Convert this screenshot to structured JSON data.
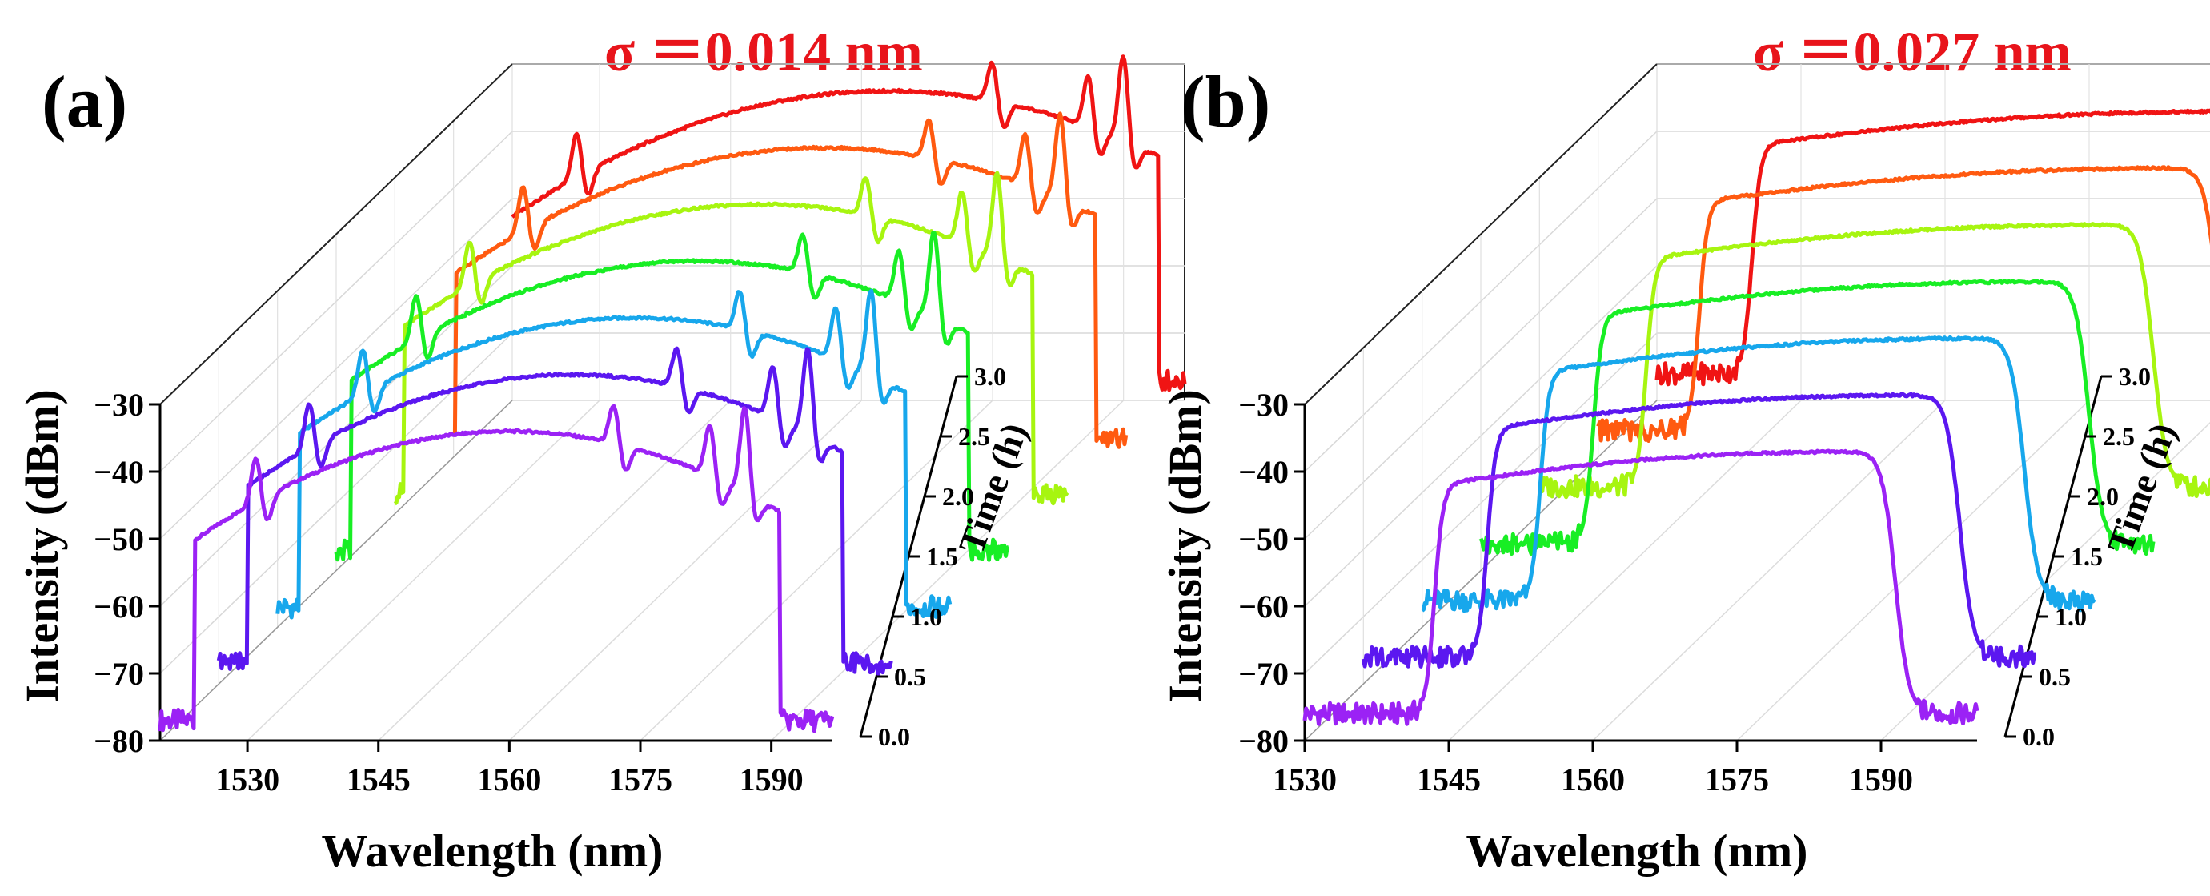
{
  "figure": {
    "panels": [
      "(a)",
      "(b)"
    ],
    "sigma_labels": [
      "σ ＝0.014 nm",
      "σ ＝0.027 nm"
    ]
  },
  "chart_data": [
    {
      "type": "line",
      "panel": "(a)",
      "title": "σ ＝0.014 nm",
      "xlabel": "Wavelength (nm)",
      "ylabel": "Intensity (dBm)",
      "zlabel": "Time (h)",
      "xlim": [
        1520,
        1597
      ],
      "ylim": [
        -80,
        -30
      ],
      "zlim": [
        0,
        3
      ],
      "xticks": [
        1530,
        1545,
        1560,
        1575,
        1590
      ],
      "yticks": [
        -30,
        -40,
        -50,
        -60,
        -70,
        -80
      ],
      "zticks": [
        0.0,
        0.5,
        1.0,
        1.5,
        2.0,
        2.5,
        3.0
      ],
      "xtick_labels": [
        "1530",
        "1545",
        "1560",
        "1575",
        "1590"
      ],
      "ytick_labels": [
        "−30",
        "−40",
        "−50",
        "−60",
        "−70",
        "−80"
      ],
      "ztick_labels": [
        "0.0",
        "0.5",
        "1.0",
        "1.5",
        "2.0",
        "2.5",
        "3.0"
      ],
      "spectrum_shape": "parabolic",
      "spectrum_params": {
        "x0": 1520,
        "x1": 1597,
        "floor": -77,
        "a": 1524,
        "b": 1591,
        "peak": -36,
        "center": 1560,
        "spikes": [
          [
            1531,
            7
          ],
          [
            1572,
            6
          ],
          [
            1583,
            8
          ],
          [
            1587,
            13
          ]
        ]
      },
      "series": [
        {
          "name": "0.0 h",
          "time": 0.0,
          "color": "#9b22f5"
        },
        {
          "name": "0.5 h",
          "time": 0.5,
          "color": "#5b17f0"
        },
        {
          "name": "1.0 h",
          "time": 1.0,
          "color": "#17a7ec"
        },
        {
          "name": "1.5 h",
          "time": 1.5,
          "color": "#18ee24"
        },
        {
          "name": "2.0 h",
          "time": 2.0,
          "color": "#a7f510"
        },
        {
          "name": "2.5 h",
          "time": 2.5,
          "color": "#ff5a10"
        },
        {
          "name": "3.0 h",
          "time": 3.0,
          "color": "#f01414"
        }
      ]
    },
    {
      "type": "line",
      "panel": "(b)",
      "title": "σ ＝0.027 nm",
      "xlabel": "Wavelength (nm)",
      "ylabel": "Intensity (dBm)",
      "zlabel": "Time (h)",
      "xlim": [
        1530,
        1600
      ],
      "ylim": [
        -80,
        -30
      ],
      "zlim": [
        0,
        3
      ],
      "xticks": [
        1530,
        1545,
        1560,
        1575,
        1590
      ],
      "yticks": [
        -30,
        -40,
        -50,
        -60,
        -70,
        -80
      ],
      "zticks": [
        0.0,
        0.5,
        1.0,
        1.5,
        2.0,
        2.5,
        3.0
      ],
      "xtick_labels": [
        "1530",
        "1545",
        "1560",
        "1575",
        "1590"
      ],
      "ytick_labels": [
        "−30",
        "−40",
        "−50",
        "−60",
        "−70",
        "−80"
      ],
      "ztick_labels": [
        "0.0",
        "0.5",
        "1.0",
        "1.5",
        "2.0",
        "2.5",
        "3.0"
      ],
      "spectrum_shape": "flat-top",
      "spectrum_params": {
        "x0": 1530,
        "x1": 1600,
        "floor": -76,
        "rise": 1543.5,
        "fall": 1591.5,
        "top_start": -42,
        "top_end": -37
      },
      "series": [
        {
          "name": "0.0 h",
          "time": 0.0,
          "color": "#9b22f5"
        },
        {
          "name": "0.5 h",
          "time": 0.5,
          "color": "#5b17f0"
        },
        {
          "name": "1.0 h",
          "time": 1.0,
          "color": "#17a7ec"
        },
        {
          "name": "1.5 h",
          "time": 1.5,
          "color": "#18ee24"
        },
        {
          "name": "2.0 h",
          "time": 2.0,
          "color": "#a7f510"
        },
        {
          "name": "2.5 h",
          "time": 2.5,
          "color": "#ff5a10"
        },
        {
          "name": "3.0 h",
          "time": 3.0,
          "color": "#f01414"
        }
      ]
    }
  ]
}
